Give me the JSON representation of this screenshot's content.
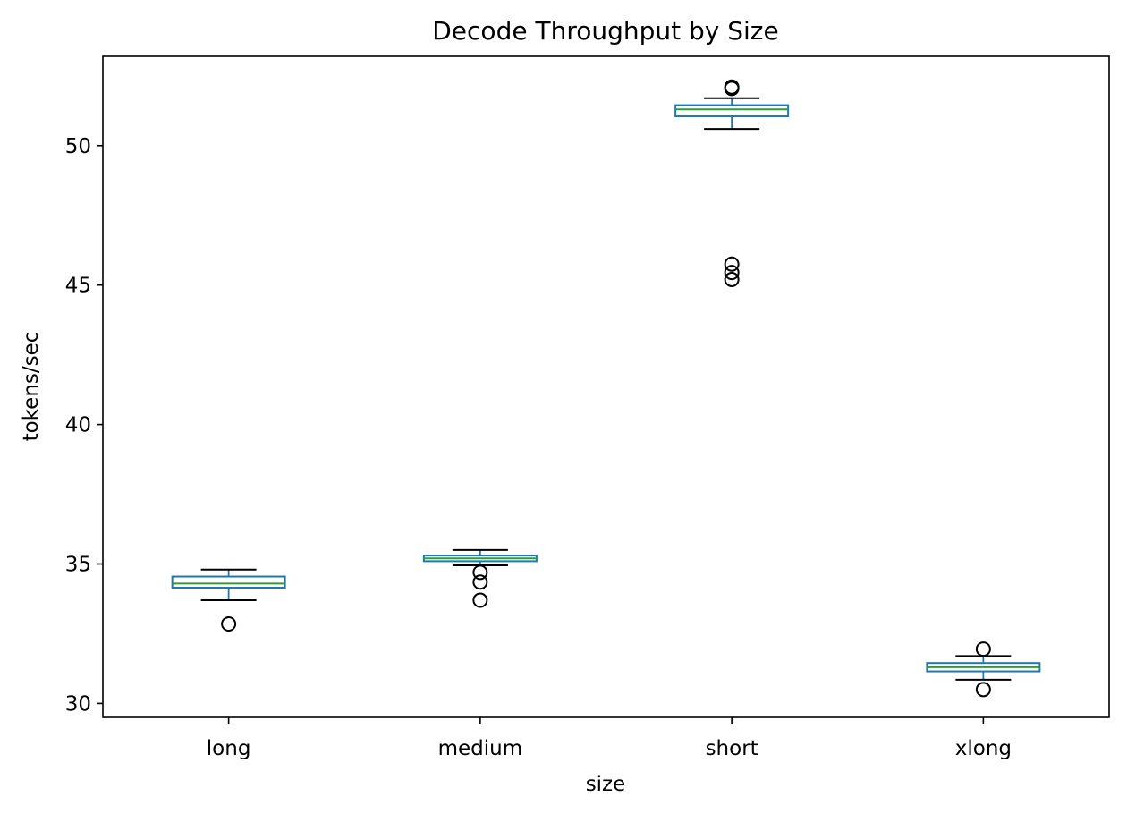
{
  "chart_data": {
    "type": "box",
    "title": "Decode Throughput by Size",
    "xlabel": "size",
    "ylabel": "tokens/sec",
    "ylim": [
      29.5,
      53.2
    ],
    "yticks": [
      30,
      35,
      40,
      45,
      50
    ],
    "grid": false,
    "categories": [
      "long",
      "medium",
      "short",
      "xlong"
    ],
    "boxes": [
      {
        "category": "long",
        "whislo": 33.7,
        "q1": 34.15,
        "med": 34.3,
        "q3": 34.55,
        "whishi": 34.8,
        "fliers": [
          32.85
        ]
      },
      {
        "category": "medium",
        "whislo": 34.95,
        "q1": 35.1,
        "med": 35.2,
        "q3": 35.3,
        "whishi": 35.5,
        "fliers": [
          34.7,
          34.35,
          33.7
        ]
      },
      {
        "category": "short",
        "whislo": 50.6,
        "q1": 51.05,
        "med": 51.3,
        "q3": 51.45,
        "whishi": 51.7,
        "fliers": [
          52.05,
          52.1,
          45.75,
          45.45,
          45.2
        ]
      },
      {
        "category": "xlong",
        "whislo": 30.85,
        "q1": 31.15,
        "med": 31.3,
        "q3": 31.45,
        "whishi": 31.7,
        "fliers": [
          31.95,
          30.5
        ]
      }
    ],
    "colors": {
      "box": "#1f77b4",
      "median": "#2ca02c",
      "whisker_cap": "#000000",
      "flier": "#000000"
    }
  }
}
